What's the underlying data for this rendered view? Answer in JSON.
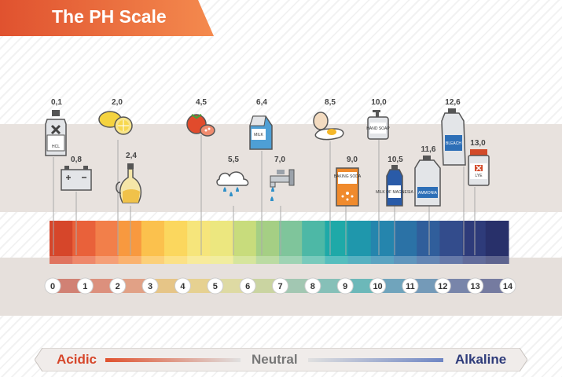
{
  "title": "The PH Scale",
  "scale": {
    "ticks": [
      "0",
      "1",
      "2",
      "3",
      "4",
      "5",
      "6",
      "7",
      "8",
      "9",
      "10",
      "11",
      "12",
      "13",
      "14"
    ],
    "colors": [
      "#d6462a",
      "#e9613a",
      "#f27f4a",
      "#f8993f",
      "#fbc14d",
      "#fbd75e",
      "#f6e57b",
      "#ece77f",
      "#c8dc7c",
      "#a5cf84",
      "#7fc59b",
      "#4db8a6",
      "#1ea9a8",
      "#1f97ac",
      "#2585ad",
      "#2b72a6",
      "#305e9b",
      "#334c8c",
      "#2e3b7a",
      "#28306a"
    ]
  },
  "substances": [
    {
      "ph": "0,1",
      "name": "HCL",
      "icon": "hcl-bottle-icon"
    },
    {
      "ph": "0,8",
      "name": "",
      "icon": "car-battery-icon"
    },
    {
      "ph": "2,0",
      "name": "",
      "icon": "lemon-icon"
    },
    {
      "ph": "2,4",
      "name": "",
      "icon": "vinegar-cruet-icon"
    },
    {
      "ph": "4,5",
      "name": "",
      "icon": "tomato-icon"
    },
    {
      "ph": "5,5",
      "name": "",
      "icon": "rain-cloud-icon"
    },
    {
      "ph": "6,4",
      "name": "MILK",
      "icon": "milk-carton-icon"
    },
    {
      "ph": "7,0",
      "name": "",
      "icon": "water-tap-icon"
    },
    {
      "ph": "8,5",
      "name": "",
      "icon": "egg-icon"
    },
    {
      "ph": "9,0",
      "name": "BAKING SODA",
      "icon": "baking-soda-icon"
    },
    {
      "ph": "10,0",
      "name": "HAND SOAP",
      "icon": "hand-soap-icon"
    },
    {
      "ph": "10,5",
      "name": "MILK OF MAGNESIA",
      "icon": "magnesia-bottle-icon"
    },
    {
      "ph": "11,6",
      "name": "AMMONIA",
      "icon": "ammonia-jug-icon"
    },
    {
      "ph": "12,6",
      "name": "BLEACH",
      "icon": "bleach-jug-icon"
    },
    {
      "ph": "13,0",
      "name": "LYE",
      "icon": "lye-container-icon"
    }
  ],
  "legend": {
    "acidic": "Acidic",
    "neutral": "Neutral",
    "alkaline": "Alkaline",
    "acidic_color": "#d6462a",
    "neutral_color": "#777777",
    "alkaline_color": "#2e3b7a"
  }
}
